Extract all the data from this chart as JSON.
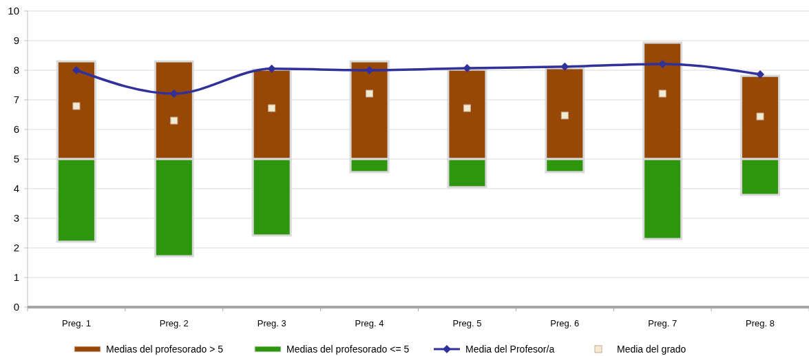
{
  "chart_data": {
    "type": "bar",
    "categories": [
      "Preg. 1",
      "Preg. 2",
      "Preg. 3",
      "Preg. 4",
      "Preg. 5",
      "Preg. 6",
      "Preg. 7",
      "Preg. 8"
    ],
    "series": [
      {
        "name": "Medias del profesorado > 5",
        "color": "#974706",
        "base": [
          5,
          5,
          5,
          5,
          5,
          5,
          5,
          5
        ],
        "values": [
          3.3,
          3.3,
          3.02,
          3.3,
          3.02,
          3.07,
          3.93,
          2.81
        ]
      },
      {
        "name": "Medias del profesorado <= 5",
        "color": "#2e960e",
        "base": [
          2.21,
          1.72,
          2.42,
          4.56,
          4.05,
          4.56,
          2.3,
          3.79
        ],
        "values": [
          2.79,
          3.28,
          2.58,
          0.44,
          0.95,
          0.44,
          2.7,
          1.21
        ]
      },
      {
        "name": "Media del Profesor/a",
        "type": "line",
        "color": "#31319b",
        "marker": "diamond",
        "values": [
          8.0,
          7.21,
          8.05,
          8.0,
          8.07,
          8.12,
          8.21,
          7.86
        ]
      },
      {
        "name": "Media del grado",
        "type": "scatter",
        "color": "#f2ebd3",
        "marker": "square",
        "values": [
          6.79,
          6.3,
          6.72,
          7.21,
          6.72,
          6.47,
          7.21,
          6.44
        ]
      }
    ],
    "ylim": [
      0,
      10
    ],
    "yticks": [
      0,
      1,
      2,
      3,
      4,
      5,
      6,
      7,
      8,
      9,
      10
    ],
    "grid": "y",
    "legend": "bottom"
  }
}
